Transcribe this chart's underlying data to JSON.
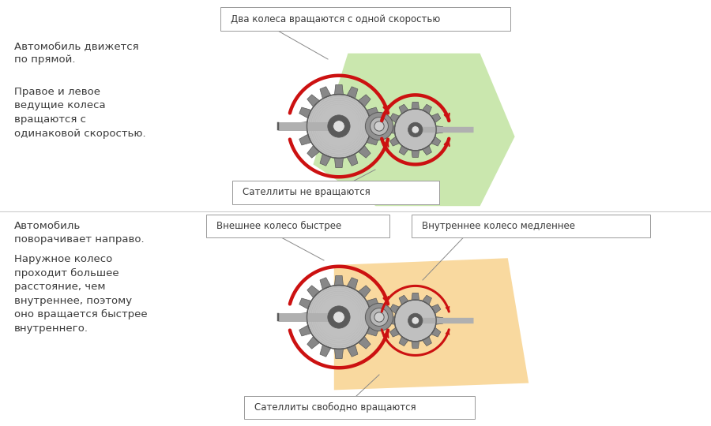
{
  "bg_color": "#ffffff",
  "text_color": "#3a3a3a",
  "top_left_text1": "Автомобиль движется\nпо прямой.",
  "top_left_text2": "Правое и левое\nведущие колеса\nвращаются с\nодинаковой скоростью.",
  "bottom_left_text1": "Автомобиль\nповорачивает направо.",
  "bottom_left_text2": "Наружное колесо\nпроходит большее\nрасстояние, чем\nвнутреннее, поэтому\nоно вращается быстрее\nвнутреннего.",
  "label_top_top": "Два колеса вращаются с одной скоростью",
  "label_top_bottom": "Сателлиты не вращаются",
  "label_bottom_top_left": "Внешнее колесо быстрее",
  "label_bottom_top_right": "Внутреннее колесо медленнее",
  "label_bottom_bottom": "Сателлиты свободно вращаются",
  "green_color": "#a8d878",
  "orange_color": "#f5c060",
  "arrow_color": "#cc1111",
  "gear_dark": "#5a5a5a",
  "gear_mid": "#888888",
  "gear_light": "#c0c0c0",
  "gear_bright": "#e0e0e0",
  "shaft_color": "#b0b0b0",
  "box_edge_color": "#999999",
  "box_face_color": "#ffffff",
  "divider_color": "#cccccc",
  "font_size_label": 8.5,
  "font_size_text": 9.5,
  "arrow_lw": 3.2,
  "arrow_lw_small": 2.2
}
